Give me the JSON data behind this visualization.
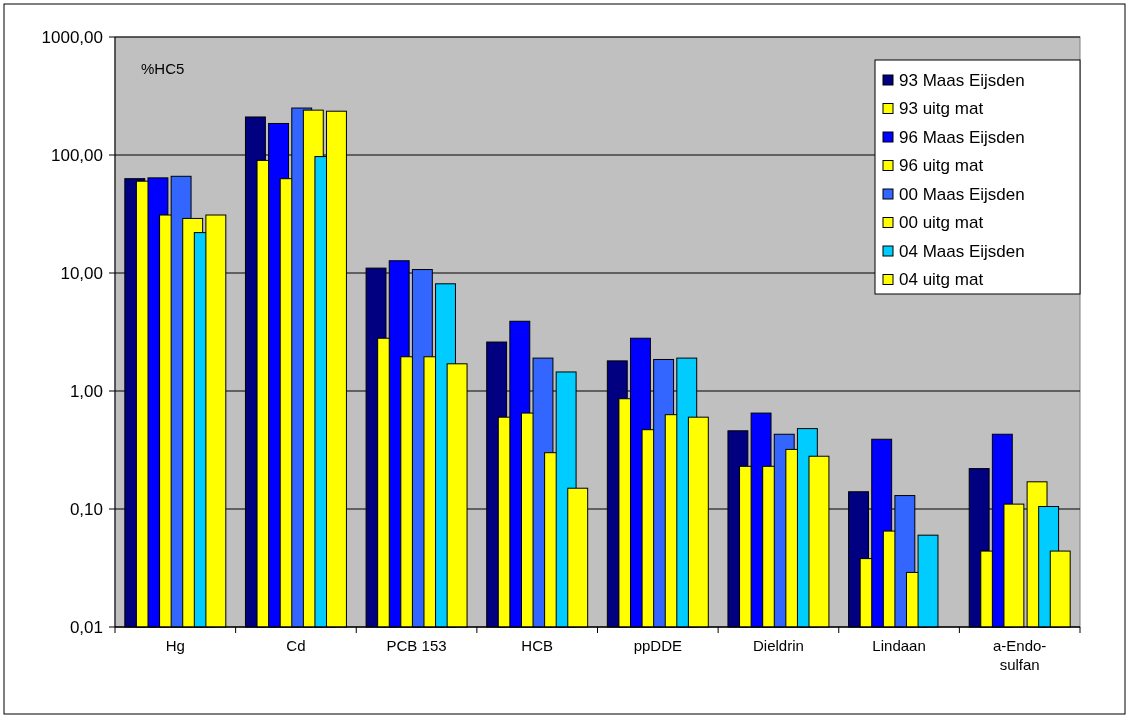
{
  "chart_data": {
    "type": "bar",
    "categories": [
      "Hg",
      "Cd",
      "PCB 153",
      "HCB",
      "ppDDE",
      "Dieldrin",
      "Lindaan",
      "a-Endo-sulfan"
    ],
    "series": [
      {
        "name": "93 Maas Eijsden",
        "color": "#000080",
        "values": [
          63,
          210,
          11,
          2.6,
          1.8,
          0.46,
          0.14,
          0.22
        ]
      },
      {
        "name": "93 uitg mat",
        "color": "#ffff00",
        "values": [
          60,
          90,
          2.8,
          0.6,
          0.86,
          0.23,
          0.038,
          0.044
        ]
      },
      {
        "name": "96 Maas Eijsden",
        "color": "#0000ff",
        "values": [
          64,
          185,
          12.7,
          3.9,
          2.8,
          0.65,
          0.39,
          0.43
        ]
      },
      {
        "name": "96 uitg mat",
        "color": "#ffff00",
        "values": [
          31,
          63,
          1.95,
          0.65,
          0.47,
          0.23,
          0.065,
          0.11
        ]
      },
      {
        "name": "00 Maas Eijsden",
        "color": "#3366ff",
        "values": [
          66,
          250,
          10.7,
          1.9,
          1.85,
          0.43,
          0.13,
          null
        ]
      },
      {
        "name": "00 uitg mat",
        "color": "#ffff00",
        "values": [
          29,
          240,
          1.95,
          0.3,
          0.63,
          0.32,
          0.029,
          0.17
        ]
      },
      {
        "name": "04 Maas Eijsden",
        "color": "#00ccff",
        "values": [
          22,
          97,
          8.1,
          1.45,
          1.9,
          0.48,
          0.06,
          0.105
        ]
      },
      {
        "name": "04 uitg mat",
        "color": "#ffff00",
        "values": [
          31,
          235,
          1.7,
          0.15,
          0.6,
          0.28,
          null,
          0.044
        ]
      }
    ],
    "log": true,
    "ylim": [
      0.01,
      1000
    ],
    "yticks": [
      {
        "value": 0.01,
        "label": "0,01"
      },
      {
        "value": 0.1,
        "label": "0,10"
      },
      {
        "value": 1,
        "label": "1,00"
      },
      {
        "value": 10,
        "label": "10,00"
      },
      {
        "value": 100,
        "label": "100,00"
      },
      {
        "value": 1000,
        "label": "1000,00"
      }
    ],
    "grid": "y",
    "legend": "top right",
    "annotations": [
      "%HC5"
    ]
  }
}
